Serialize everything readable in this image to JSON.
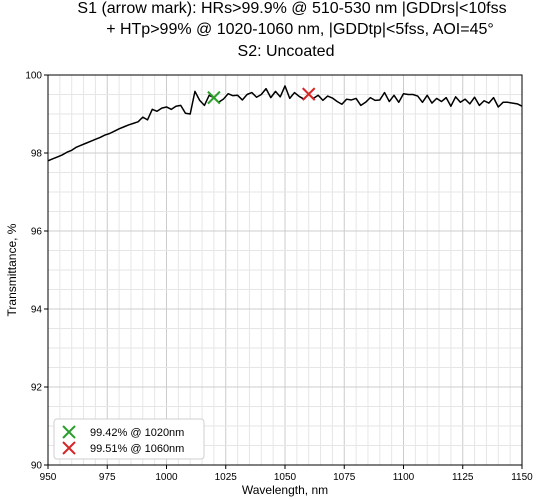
{
  "chart_data": {
    "type": "line",
    "title_lines": [
      "S1 (arrow mark): HRs>99.9% @ 510-530 nm |GDDrs|<10fss",
      "+ HTp>99% @ 1020-1060 nm, |GDDtp|<5fss, AOI=45°",
      "S2: Uncoated"
    ],
    "xlabel": "Wavelength, nm",
    "ylabel": "Transmittance, %",
    "xlim": [
      950,
      1150
    ],
    "ylim": [
      90,
      100
    ],
    "xticks": [
      950,
      975,
      1000,
      1025,
      1050,
      1075,
      1100,
      1125,
      1150
    ],
    "yticks": [
      90,
      92,
      94,
      96,
      98,
      100
    ],
    "grid": true,
    "series": [
      {
        "color": "#000000",
        "x": [
          950,
          952,
          954,
          956,
          958,
          960,
          962,
          964,
          966,
          968,
          970,
          972,
          974,
          976,
          978,
          980,
          982,
          984,
          986,
          988,
          990,
          992,
          994,
          996,
          998,
          1000,
          1002,
          1004,
          1006,
          1008,
          1010,
          1012,
          1014,
          1016,
          1018,
          1020,
          1022,
          1024,
          1026,
          1028,
          1030,
          1032,
          1034,
          1036,
          1038,
          1040,
          1042,
          1044,
          1046,
          1048,
          1050,
          1052,
          1054,
          1056,
          1058,
          1060,
          1062,
          1064,
          1066,
          1068,
          1070,
          1072,
          1074,
          1076,
          1078,
          1080,
          1082,
          1084,
          1086,
          1088,
          1090,
          1092,
          1094,
          1096,
          1098,
          1100,
          1102,
          1104,
          1106,
          1108,
          1110,
          1112,
          1114,
          1116,
          1118,
          1120,
          1122,
          1124,
          1126,
          1128,
          1130,
          1132,
          1134,
          1136,
          1138,
          1140,
          1142,
          1144,
          1146,
          1148,
          1150
        ],
        "y": [
          97.8,
          97.85,
          97.9,
          97.95,
          98.02,
          98.07,
          98.15,
          98.2,
          98.25,
          98.3,
          98.35,
          98.4,
          98.46,
          98.5,
          98.56,
          98.62,
          98.67,
          98.72,
          98.76,
          98.8,
          98.92,
          98.85,
          99.12,
          99.07,
          99.15,
          99.18,
          99.12,
          99.2,
          99.22,
          99.02,
          99.0,
          99.58,
          99.35,
          99.22,
          99.48,
          99.42,
          99.3,
          99.38,
          99.52,
          99.47,
          99.48,
          99.36,
          99.5,
          99.55,
          99.43,
          99.5,
          99.65,
          99.42,
          99.58,
          99.44,
          99.72,
          99.4,
          99.55,
          99.45,
          99.38,
          99.51,
          99.4,
          99.48,
          99.35,
          99.46,
          99.41,
          99.32,
          99.25,
          99.38,
          99.36,
          99.4,
          99.22,
          99.3,
          99.42,
          99.35,
          99.36,
          99.55,
          99.32,
          99.48,
          99.3,
          99.52,
          99.5,
          99.5,
          99.46,
          99.3,
          99.48,
          99.28,
          99.4,
          99.32,
          99.42,
          99.2,
          99.44,
          99.3,
          99.38,
          99.26,
          99.43,
          99.22,
          99.34,
          99.28,
          99.42,
          99.18,
          99.3,
          99.3,
          99.28,
          99.26,
          99.2
        ]
      }
    ],
    "markers": [
      {
        "label": "99.42% @ 1020nm",
        "x": 1020,
        "y": 99.42,
        "color": "#2ca02c",
        "symbol": "x"
      },
      {
        "label": "99.51% @ 1060nm",
        "x": 1060,
        "y": 99.51,
        "color": "#d62728",
        "symbol": "x"
      }
    ],
    "legend": {
      "position": "bottom-left"
    }
  }
}
